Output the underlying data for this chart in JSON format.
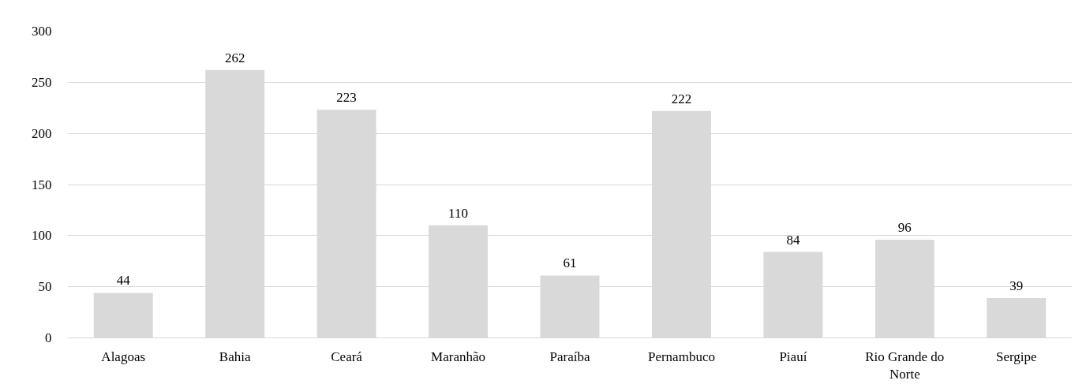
{
  "chart_data": {
    "type": "bar",
    "categories": [
      "Alagoas",
      "Bahia",
      "Ceará",
      "Maranhão",
      "Paraíba",
      "Pernambuco",
      "Piauí",
      "Rio Grande do Norte",
      "Sergipe"
    ],
    "values": [
      44,
      262,
      223,
      110,
      61,
      222,
      84,
      96,
      39
    ],
    "color": "#d9d9d9",
    "ylim": [
      0,
      300
    ],
    "yticks": [
      0,
      50,
      100,
      150,
      200,
      250,
      300
    ],
    "grid": "y",
    "data_labels": true
  }
}
